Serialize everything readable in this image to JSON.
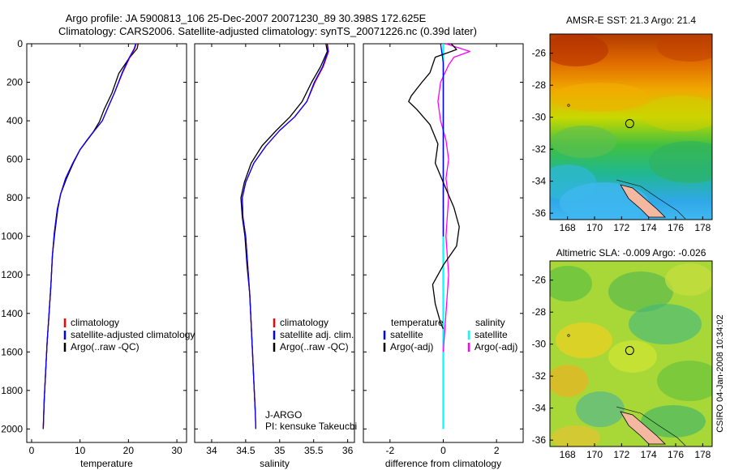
{
  "figure": {
    "title_line1": "Argo profile: JA 5900813_106 25-Dec-2007 20071230_89 30.398S 172.625E",
    "title_line2": "Climatology: CARS2006. Satellite-adjusted climatology: synTS_20071226.nc (0.39d later)",
    "side_stamp": "CSIRO 04-Jan-2008 10:34:02",
    "credit_line1": "J-ARGO",
    "credit_line2": "PI: kensuke Takeuchi"
  },
  "colors": {
    "climatology": "#ff0000",
    "satellite": "#0000ff",
    "argo": "#000000",
    "salinity_satellite": "#00ffff",
    "salinity_argo": "#ff00ff"
  },
  "chart_data": [
    {
      "type": "line",
      "id": "temperature",
      "xlabel": "temperature",
      "ylabel": "",
      "xlim": [
        -1,
        32
      ],
      "ylim": [
        2070,
        0
      ],
      "xticks": [
        0,
        10,
        20,
        30
      ],
      "yticks": [
        0,
        200,
        400,
        600,
        800,
        1000,
        1200,
        1400,
        1600,
        1800,
        2000
      ],
      "legend": [
        "climatology",
        "satellite-adjusted climatology",
        "Argo(..raw -QC)"
      ],
      "legend_placement": "right",
      "series": [
        {
          "name": "climatology",
          "color": "#ff0000",
          "x": [
            21.6,
            21.3,
            20.2,
            18.8,
            17.2,
            15.8,
            14.6,
            13.0,
            11.5,
            10.0,
            8.5,
            7.0,
            6.0,
            5.3,
            4.7,
            4.3,
            4.0,
            3.6,
            3.2,
            2.9,
            2.6,
            2.4
          ],
          "y": [
            0,
            25,
            75,
            150,
            250,
            330,
            400,
            450,
            500,
            550,
            620,
            700,
            780,
            860,
            980,
            1100,
            1250,
            1400,
            1550,
            1700,
            1850,
            2000
          ]
        },
        {
          "name": "satellite-adjusted climatology",
          "color": "#0000ff",
          "x": [
            21.5,
            21.2,
            20.1,
            18.7,
            17.2,
            15.8,
            14.6,
            13.0,
            11.5,
            10.0,
            8.5,
            7.0,
            6.0,
            5.3,
            4.7,
            4.3,
            4.0,
            3.6,
            3.2,
            2.9,
            2.6,
            2.4
          ],
          "y": [
            0,
            25,
            75,
            150,
            250,
            330,
            400,
            450,
            500,
            550,
            620,
            700,
            780,
            860,
            980,
            1100,
            1250,
            1400,
            1550,
            1700,
            1850,
            2000
          ]
        },
        {
          "name": "Argo(..raw -QC)",
          "color": "#000000",
          "x": [
            22.0,
            21.8,
            20.0,
            18.0,
            16.6,
            15.0,
            14.0,
            12.8,
            11.3,
            10.0,
            8.6,
            7.2,
            6.0,
            5.4,
            4.8,
            4.3,
            4.0,
            3.6,
            3.2,
            2.9,
            2.6,
            2.4
          ],
          "y": [
            0,
            25,
            80,
            155,
            255,
            340,
            405,
            455,
            505,
            550,
            620,
            700,
            780,
            860,
            980,
            1100,
            1250,
            1400,
            1550,
            1700,
            1850,
            2000
          ]
        }
      ]
    },
    {
      "type": "line",
      "id": "salinity",
      "xlabel": "salinity",
      "ylabel": "",
      "xlim": [
        33.75,
        36.1
      ],
      "ylim": [
        2070,
        0
      ],
      "xticks": [
        34,
        34.5,
        35,
        35.5,
        36
      ],
      "yticks": [
        0,
        200,
        400,
        600,
        800,
        1000,
        1200,
        1400,
        1600,
        1800,
        2000
      ],
      "legend": [
        "climatology",
        "satellite adj. clim.",
        "Argo(..raw -QC)"
      ],
      "legend_placement": "right",
      "series": [
        {
          "name": "climatology",
          "color": "#ff0000",
          "x": [
            35.7,
            35.72,
            35.64,
            35.52,
            35.4,
            35.22,
            35.0,
            34.8,
            34.62,
            34.5,
            34.45,
            34.46,
            34.5,
            34.53,
            34.56,
            34.58,
            34.6,
            34.62,
            34.64,
            34.65
          ],
          "y": [
            0,
            40,
            120,
            200,
            300,
            380,
            450,
            530,
            620,
            720,
            800,
            900,
            1000,
            1150,
            1300,
            1450,
            1600,
            1750,
            1900,
            2000
          ]
        },
        {
          "name": "satellite adj. clim.",
          "color": "#0000ff",
          "x": [
            35.7,
            35.71,
            35.63,
            35.51,
            35.4,
            35.22,
            35.0,
            34.8,
            34.62,
            34.5,
            34.45,
            34.46,
            34.5,
            34.53,
            34.56,
            34.58,
            34.6,
            34.62,
            34.64,
            34.65
          ],
          "y": [
            0,
            40,
            120,
            200,
            300,
            380,
            450,
            530,
            620,
            720,
            800,
            900,
            1000,
            1150,
            1300,
            1450,
            1600,
            1750,
            1900,
            2000
          ]
        },
        {
          "name": "Argo(..raw -QC)",
          "color": "#000000",
          "x": [
            35.68,
            35.7,
            35.6,
            35.47,
            35.33,
            35.15,
            34.95,
            34.74,
            34.58,
            34.48,
            34.43,
            34.45,
            34.49,
            34.52,
            34.56,
            34.58,
            34.6,
            34.62,
            34.64
          ],
          "y": [
            0,
            40,
            120,
            200,
            300,
            380,
            450,
            530,
            620,
            720,
            800,
            900,
            1000,
            1150,
            1300,
            1450,
            1600,
            1750,
            1900
          ]
        }
      ]
    },
    {
      "type": "line",
      "id": "difference",
      "xlabel": "difference from climatology",
      "ylabel": "",
      "xlim": [
        -3,
        3
      ],
      "ylim": [
        2070,
        0
      ],
      "xticks": [
        -2,
        0,
        2
      ],
      "yticks": [
        0,
        200,
        400,
        600,
        800,
        1000,
        1200,
        1400,
        1600,
        1800,
        2000
      ],
      "legend_groups": [
        {
          "title": "temperature",
          "items": [
            "satellite",
            "Argo(-adj)"
          ]
        },
        {
          "title": "salinity",
          "items": [
            "satellite",
            "Argo(-adj)"
          ]
        }
      ],
      "legend_placement": "middle",
      "series": [
        {
          "name": "satellite",
          "group": "temperature",
          "color": "#0000ff",
          "x": [
            -0.1,
            -0.05,
            0,
            0,
            0,
            0,
            0,
            0
          ],
          "y": [
            0,
            50,
            100,
            300,
            500,
            700,
            900,
            1000
          ]
        },
        {
          "name": "Argo(-adj)",
          "group": "temperature",
          "color": "#000000",
          "x": [
            0.3,
            0.5,
            -0.3,
            -0.5,
            -0.8,
            -1.2,
            -1.3,
            -1.0,
            -0.5,
            -0.2,
            -0.3,
            0,
            0.4,
            0.6,
            0.5,
            0,
            -0.4,
            -0.3,
            -0.1,
            0
          ],
          "y": [
            0,
            30,
            70,
            150,
            200,
            270,
            300,
            340,
            420,
            520,
            620,
            720,
            850,
            950,
            1050,
            1150,
            1250,
            1350,
            1450,
            1480
          ]
        },
        {
          "name": "satellite",
          "group": "salinity",
          "color": "#00ffff",
          "x": [
            0,
            0,
            0,
            0,
            0,
            0,
            0,
            0,
            0
          ],
          "y": [
            0,
            250,
            500,
            750,
            1000,
            1250,
            1500,
            1750,
            2000
          ]
        },
        {
          "name": "Argo(-adj)",
          "group": "salinity",
          "color": "#ff00ff",
          "x": [
            0.1,
            1.0,
            0.4,
            0.2,
            -0.1,
            -0.2,
            -0.1,
            0.1,
            0.2,
            0.1,
            0.2,
            0.15,
            0.1,
            0.2,
            0.1,
            0
          ],
          "y": [
            0,
            40,
            70,
            110,
            200,
            300,
            400,
            500,
            600,
            700,
            800,
            900,
            1000,
            1200,
            1400,
            1600
          ]
        }
      ]
    },
    {
      "type": "heatmap",
      "id": "sst_map",
      "title": "AMSR-E SST: 21.3 Argo: 21.4",
      "xlim": [
        166.7,
        178.7
      ],
      "ylim": [
        -36.4,
        -24.8
      ],
      "xticks": [
        168,
        170,
        172,
        174,
        176,
        178
      ],
      "yticks": [
        -26,
        -28,
        -30,
        -32,
        -34,
        -36
      ],
      "marker": {
        "lon": 172.6,
        "lat": -30.4
      }
    },
    {
      "type": "heatmap",
      "id": "sla_map",
      "title": "Altimetric SLA: -0.009 Argo: -0.026",
      "xlim": [
        166.7,
        178.7
      ],
      "ylim": [
        -36.4,
        -24.8
      ],
      "xticks": [
        168,
        170,
        172,
        174,
        176,
        178
      ],
      "yticks": [
        -26,
        -28,
        -30,
        -32,
        -34,
        -36
      ],
      "marker": {
        "lon": 172.6,
        "lat": -30.4
      }
    }
  ]
}
